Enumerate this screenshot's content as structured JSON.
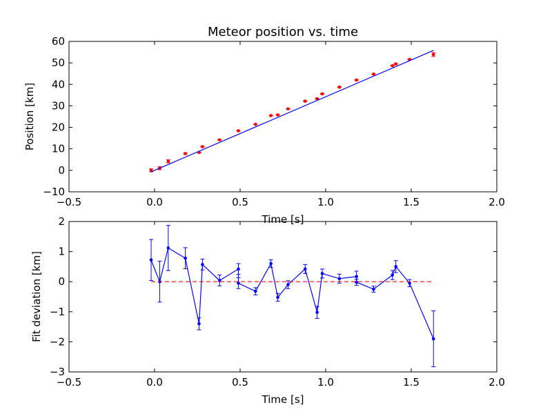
{
  "chart_data": [
    {
      "type": "scatter",
      "title": "Meteor position vs. time",
      "xlabel": "Time [s]",
      "ylabel": "Position [km]",
      "xlim": [
        -0.5,
        2.0
      ],
      "ylim": [
        -10,
        60
      ],
      "xticks": [
        "−0.5",
        "0.0",
        "0.5",
        "1.0",
        "1.5",
        "2.0"
      ],
      "yticks": [
        "−10",
        "0",
        "10",
        "20",
        "30",
        "40",
        "50",
        "60"
      ],
      "grid": false,
      "colors": {
        "points": "#ff0000",
        "fit_line": "#0000ff"
      },
      "series": [
        {
          "kind": "points",
          "x": [
            -0.02,
            0.03,
            0.08,
            0.18,
            0.26,
            0.28,
            0.38,
            0.49,
            0.59,
            0.68,
            0.72,
            0.78,
            0.88,
            0.95,
            0.98,
            1.08,
            1.18,
            1.28,
            1.39,
            1.41,
            1.49,
            1.63
          ],
          "y": [
            0.0,
            1.0,
            4.2,
            7.8,
            8.3,
            11.0,
            14.2,
            18.4,
            21.4,
            25.5,
            25.8,
            28.6,
            32.2,
            33.3,
            35.6,
            38.7,
            42.0,
            44.8,
            48.7,
            49.5,
            51.6,
            53.9
          ],
          "yerr": [
            0.7,
            0.7,
            0.7,
            0.4,
            0.2,
            0.2,
            0.2,
            0.2,
            0.1,
            0.1,
            0.1,
            0.1,
            0.2,
            0.2,
            0.2,
            0.2,
            0.2,
            0.1,
            0.2,
            0.2,
            0.1,
            0.9
          ]
        },
        {
          "kind": "fit_line",
          "x": [
            -0.02,
            1.63
          ],
          "y": [
            -0.7,
            55.8
          ]
        }
      ]
    },
    {
      "type": "line",
      "title": "",
      "xlabel": "Time [s]",
      "ylabel": "Fit deviation [km]",
      "xlim": [
        -0.5,
        2.0
      ],
      "ylim": [
        -3,
        2
      ],
      "xticks": [
        "−0.5",
        "0.0",
        "0.5",
        "1.0",
        "1.5",
        "2.0"
      ],
      "yticks": [
        "−3",
        "−2",
        "−1",
        "0",
        "1",
        "2"
      ],
      "grid": false,
      "colors": {
        "deviation": "#0000ff",
        "zero_line": "#ff0000"
      },
      "series": [
        {
          "kind": "deviation",
          "x": [
            -0.02,
            0.03,
            0.08,
            0.18,
            0.26,
            0.28,
            0.38,
            0.49,
            0.49,
            0.59,
            0.68,
            0.72,
            0.78,
            0.88,
            0.95,
            0.98,
            1.08,
            1.18,
            1.18,
            1.28,
            1.39,
            1.41,
            1.49,
            1.63
          ],
          "y": [
            0.72,
            0.0,
            1.12,
            0.78,
            -1.4,
            0.57,
            0.04,
            0.42,
            -0.05,
            -0.32,
            0.6,
            -0.52,
            -0.1,
            0.42,
            -1.02,
            0.27,
            0.1,
            0.17,
            -0.02,
            -0.25,
            0.22,
            0.5,
            -0.05,
            -1.9
          ],
          "yerr": [
            0.68,
            0.68,
            0.75,
            0.35,
            0.2,
            0.18,
            0.18,
            0.18,
            0.18,
            0.12,
            0.13,
            0.13,
            0.13,
            0.15,
            0.2,
            0.15,
            0.15,
            0.18,
            0.1,
            0.1,
            0.15,
            0.2,
            0.12,
            0.93
          ]
        },
        {
          "kind": "zero_line",
          "x": [
            -0.02,
            1.63
          ],
          "y": [
            0,
            0
          ]
        }
      ]
    }
  ]
}
